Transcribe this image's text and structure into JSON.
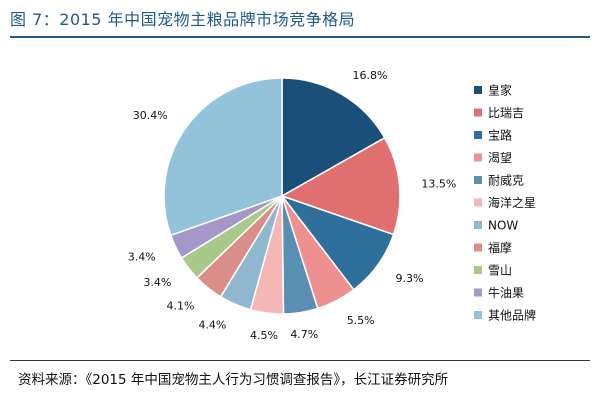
{
  "header": {
    "title": "图 7：2015 年中国宠物主粮品牌市场竞争格局"
  },
  "footer": {
    "source": "资料来源：《2015 年中国宠物主人行为习惯调查报告》，长江证券研究所"
  },
  "chart_data": {
    "type": "pie",
    "title": "",
    "legend_position": "right",
    "slices": [
      {
        "name": "皇家",
        "value": 16.8,
        "label": "16.8%",
        "color": "#1a4f7a"
      },
      {
        "name": "比瑞吉",
        "value": 13.5,
        "label": "13.5%",
        "color": "#e07070"
      },
      {
        "name": "宝路",
        "value": 9.3,
        "label": "9.3%",
        "color": "#2f6f9c"
      },
      {
        "name": "渴望",
        "value": 5.5,
        "label": "5.5%",
        "color": "#ee9090"
      },
      {
        "name": "耐威克",
        "value": 4.7,
        "label": "4.7%",
        "color": "#5a8fb3"
      },
      {
        "name": "海洋之星",
        "value": 4.5,
        "label": "4.5%",
        "color": "#f5b6b6"
      },
      {
        "name": "NOW",
        "value": 4.4,
        "label": "4.4%",
        "color": "#8fb7cf"
      },
      {
        "name": "福摩",
        "value": 4.1,
        "label": "4.1%",
        "color": "#d98e8a"
      },
      {
        "name": "雪山",
        "value": 3.4,
        "label": "3.4%",
        "color": "#a9c98a"
      },
      {
        "name": "牛油果",
        "value": 3.4,
        "label": "3.4%",
        "color": "#a598c9"
      },
      {
        "name": "其他品牌",
        "value": 30.4,
        "label": "30.4%",
        "color": "#93c3da"
      }
    ]
  }
}
